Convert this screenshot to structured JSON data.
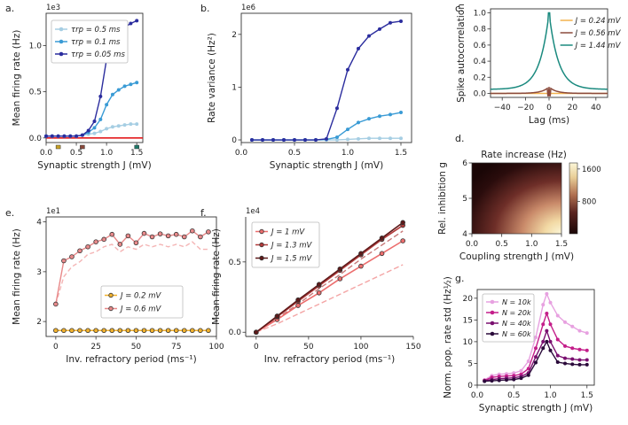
{
  "chart_data": [
    {
      "panel": "a.",
      "type": "line",
      "xlabel": "Synaptic strength J (mV)",
      "ylabel": "Mean firing rate (Hz)",
      "multiplier": "1e3",
      "xlim": [
        0,
        1.6
      ],
      "ylim": [
        -0.05,
        1.35
      ],
      "xticks": [
        0.0,
        0.5,
        1.0,
        1.5
      ],
      "xtick_labels": [
        "0.0",
        "0.5",
        "1.0",
        "1.5"
      ],
      "yticks": [
        0.0,
        0.5,
        1.0
      ],
      "ytick_labels": [
        "0.0",
        "0.5",
        "1.0"
      ],
      "legend": [
        "τrp = 0.5 ms",
        "τrp = 0.1 ms",
        "τrp = 0.05 ms"
      ],
      "x": [
        0.0,
        0.1,
        0.2,
        0.3,
        0.4,
        0.5,
        0.6,
        0.7,
        0.8,
        0.9,
        1.0,
        1.1,
        1.2,
        1.3,
        1.4,
        1.5
      ],
      "series": [
        {
          "name": "τrp = 0.5 ms",
          "color": "#a6cee3",
          "values": [
            0.02,
            0.02,
            0.02,
            0.02,
            0.02,
            0.02,
            0.03,
            0.04,
            0.05,
            0.07,
            0.1,
            0.12,
            0.13,
            0.14,
            0.15,
            0.15
          ]
        },
        {
          "name": "τrp = 0.1 ms",
          "color": "#3a9bd5",
          "values": [
            0.02,
            0.02,
            0.02,
            0.02,
            0.02,
            0.02,
            0.03,
            0.06,
            0.11,
            0.2,
            0.36,
            0.47,
            0.52,
            0.56,
            0.58,
            0.6
          ]
        },
        {
          "name": "τrp = 0.05 ms",
          "color": "#2b2d9e",
          "values": [
            0.02,
            0.02,
            0.02,
            0.02,
            0.02,
            0.02,
            0.03,
            0.08,
            0.18,
            0.45,
            0.85,
            1.08,
            1.16,
            1.2,
            1.24,
            1.27
          ]
        }
      ],
      "baseline": {
        "color": "#e31a1c",
        "value": 0.0
      },
      "markers": [
        {
          "x": 0.2,
          "color": "#c9a227"
        },
        {
          "x": 0.6,
          "color": "#8b4a3c"
        },
        {
          "x": 1.5,
          "color": "#1f7a6a"
        }
      ]
    },
    {
      "panel": "b.",
      "type": "line",
      "xlabel": "Synaptic strength J (mV)",
      "ylabel": "Rate variance (Hz²)",
      "multiplier": "1e6",
      "xlim": [
        0,
        1.6
      ],
      "ylim": [
        -0.05,
        2.4
      ],
      "xticks": [
        0.0,
        0.5,
        1.0,
        1.5
      ],
      "xtick_labels": [
        "0.0",
        "0.5",
        "1.0",
        "1.5"
      ],
      "yticks": [
        0,
        1,
        2
      ],
      "ytick_labels": [
        "0",
        "1",
        "2"
      ],
      "x": [
        0.1,
        0.2,
        0.3,
        0.4,
        0.5,
        0.6,
        0.7,
        0.8,
        0.9,
        1.0,
        1.1,
        1.2,
        1.3,
        1.4,
        1.5
      ],
      "series": [
        {
          "name": "τrp = 0.5 ms",
          "color": "#a6cee3",
          "values": [
            0,
            0,
            0,
            0,
            0,
            0,
            0,
            0,
            0,
            0.01,
            0.02,
            0.03,
            0.03,
            0.03,
            0.03
          ]
        },
        {
          "name": "τrp = 0.1 ms",
          "color": "#3a9bd5",
          "values": [
            0,
            0,
            0,
            0,
            0,
            0,
            0,
            0.01,
            0.05,
            0.2,
            0.33,
            0.4,
            0.45,
            0.48,
            0.52
          ]
        },
        {
          "name": "τrp = 0.05 ms",
          "color": "#2b2d9e",
          "values": [
            0,
            0,
            0,
            0,
            0,
            0,
            0,
            0.02,
            0.6,
            1.33,
            1.73,
            1.97,
            2.1,
            2.22,
            2.25
          ]
        }
      ]
    },
    {
      "panel": "c.",
      "type": "line",
      "xlabel": "Lag (ms)",
      "ylabel": "Spike autocorrelation",
      "xlim": [
        -50,
        50
      ],
      "ylim": [
        -0.05,
        1.05
      ],
      "xticks": [
        -40,
        -20,
        0,
        20,
        40
      ],
      "xtick_labels": [
        "−40",
        "−20",
        "0",
        "20",
        "40"
      ],
      "yticks": [
        0.0,
        0.2,
        0.4,
        0.6,
        0.8,
        1.0
      ],
      "ytick_labels": [
        "0.0",
        "0.2",
        "0.4",
        "0.6",
        "0.8",
        "1.0"
      ],
      "legend": [
        "J = 0.24 mV",
        "J = 0.56 mV",
        "J = 1.44 mV"
      ],
      "series": [
        {
          "name": "J = 0.24 mV",
          "color": "#f2b24e",
          "baseline": 0.0,
          "peak": 0.0
        },
        {
          "name": "J = 0.56 mV",
          "color": "#8b4a3c",
          "baseline": 0.0,
          "peak": 0.08
        },
        {
          "name": "J = 1.44 mV",
          "color": "#1a8a7f",
          "baseline": 0.05,
          "peak": 1.0
        }
      ]
    },
    {
      "panel": "d.",
      "type": "heatmap",
      "title": "Rate increase (Hz)",
      "xlabel": "Coupling strength J (mV)",
      "ylabel": "Rel. inhibition g",
      "xlim": [
        0,
        1.5
      ],
      "ylim": [
        4,
        6
      ],
      "xticks": [
        0.0,
        0.5,
        1.0,
        1.5
      ],
      "xtick_labels": [
        "0.0",
        "0.5",
        "1.0",
        "1.5"
      ],
      "yticks": [
        4,
        5,
        6
      ],
      "ytick_labels": [
        "4",
        "5",
        "6"
      ],
      "colorbar_ticks": [
        800,
        1600
      ],
      "colorbar_range": [
        0,
        1750
      ]
    },
    {
      "panel": "e.",
      "type": "line",
      "xlabel": "Inv. refractory period (ms⁻¹)",
      "ylabel": "Mean firing rate (Hz)",
      "multiplier": "1e1",
      "xlim": [
        -6,
        100
      ],
      "ylim": [
        1.7,
        4.1
      ],
      "xticks": [
        0,
        25,
        50,
        75,
        100
      ],
      "xtick_labels": [
        "0",
        "25",
        "50",
        "75",
        "100"
      ],
      "yticks": [
        2,
        3,
        4
      ],
      "ytick_labels": [
        "2",
        "3",
        "4"
      ],
      "legend": [
        "J = 0.2 mV",
        "J = 0.6 mV"
      ],
      "x": [
        0,
        5,
        10,
        15,
        20,
        25,
        30,
        35,
        40,
        45,
        50,
        55,
        60,
        65,
        70,
        75,
        80,
        85,
        90,
        95
      ],
      "series": [
        {
          "name": "J = 0.2 mV",
          "color": "#f2b22e",
          "values": [
            1.82,
            1.82,
            1.82,
            1.82,
            1.82,
            1.82,
            1.82,
            1.82,
            1.82,
            1.82,
            1.82,
            1.82,
            1.82,
            1.82,
            1.82,
            1.82,
            1.82,
            1.82,
            1.82,
            1.82
          ]
        },
        {
          "name": "J = 0.6 mV",
          "color": "#e8898a",
          "values": [
            2.35,
            3.22,
            3.3,
            3.42,
            3.5,
            3.6,
            3.65,
            3.75,
            3.55,
            3.72,
            3.58,
            3.77,
            3.7,
            3.76,
            3.72,
            3.75,
            3.7,
            3.82,
            3.7,
            3.8
          ]
        }
      ],
      "dashed": {
        "color": "#f4b4b4",
        "values": [
          2.35,
          2.9,
          3.1,
          3.2,
          3.35,
          3.4,
          3.5,
          3.55,
          3.4,
          3.5,
          3.45,
          3.55,
          3.5,
          3.55,
          3.5,
          3.55,
          3.5,
          3.6,
          3.45,
          3.45
        ]
      }
    },
    {
      "panel": "f.",
      "type": "line",
      "xlabel": "Inv. refractory period (ms⁻¹)",
      "ylabel": "Mean firing rate (Hz)",
      "multiplier": "1e4",
      "xlim": [
        -10,
        150
      ],
      "ylim": [
        -0.03,
        0.82
      ],
      "xticks": [
        0,
        50,
        100,
        150
      ],
      "xtick_labels": [
        "0",
        "50",
        "100",
        "150"
      ],
      "yticks": [
        0.0,
        0.5
      ],
      "ytick_labels": [
        "0.0",
        "0.5"
      ],
      "legend": [
        "J = 1 mV",
        "J = 1.3 mV",
        "J = 1.5 mV"
      ],
      "x": [
        0,
        20,
        40,
        60,
        80,
        100,
        120,
        140
      ],
      "series": [
        {
          "name": "J = 1 mV",
          "color": "#ec6e6e",
          "values": [
            0,
            0.09,
            0.19,
            0.28,
            0.38,
            0.47,
            0.56,
            0.65
          ]
        },
        {
          "name": "J = 1.3 mV",
          "color": "#b13a3a",
          "values": [
            0,
            0.11,
            0.22,
            0.33,
            0.44,
            0.55,
            0.66,
            0.76
          ]
        },
        {
          "name": "J = 1.5 mV",
          "color": "#5e1a1a",
          "values": [
            0,
            0.115,
            0.23,
            0.34,
            0.45,
            0.56,
            0.67,
            0.78
          ]
        }
      ],
      "dashed": [
        {
          "color": "#f4a6a6",
          "values": [
            0,
            0.06,
            0.13,
            0.2,
            0.27,
            0.34,
            0.41,
            0.48
          ]
        },
        {
          "color": "#c87a7a",
          "values": [
            0,
            0.1,
            0.2,
            0.31,
            0.41,
            0.52,
            0.62,
            0.72
          ]
        }
      ]
    },
    {
      "panel": "g.",
      "type": "line",
      "xlabel": "Synaptic strength J (mV)",
      "ylabel": "Norm. pop. rate std (Hz½)",
      "xlim": [
        0,
        1.6
      ],
      "ylim": [
        0,
        22
      ],
      "xticks": [
        0.0,
        0.5,
        1.0,
        1.5
      ],
      "xtick_labels": [
        "0.0",
        "0.5",
        "1.0",
        "1.5"
      ],
      "yticks": [
        0,
        5,
        10,
        15,
        20
      ],
      "ytick_labels": [
        "0",
        "5",
        "10",
        "15",
        "20"
      ],
      "legend": [
        "N = 10k",
        "N = 20k",
        "N = 40k",
        "N = 60k"
      ],
      "x": [
        0.1,
        0.2,
        0.3,
        0.4,
        0.5,
        0.6,
        0.7,
        0.8,
        0.9,
        0.95,
        1.0,
        1.1,
        1.2,
        1.3,
        1.4,
        1.5
      ],
      "series": [
        {
          "name": "N = 10k",
          "color": "#e7a1e0",
          "values": [
            1.2,
            2.2,
            2.5,
            2.6,
            2.8,
            3.3,
            5.5,
            11,
            18.5,
            21,
            19,
            16,
            14.5,
            13.5,
            12.5,
            12
          ]
        },
        {
          "name": "N = 20k",
          "color": "#c41e8a",
          "values": [
            1.1,
            1.8,
            2.0,
            2.1,
            2.2,
            2.5,
            3.8,
            8.5,
            14,
            16.5,
            14,
            10.5,
            9,
            8.5,
            8.2,
            8
          ]
        },
        {
          "name": "N = 40k",
          "color": "#7a1070",
          "values": [
            1.0,
            1.3,
            1.5,
            1.6,
            1.7,
            2.0,
            2.8,
            6.5,
            10,
            12.5,
            10,
            6.8,
            6.2,
            6,
            5.8,
            5.8
          ]
        },
        {
          "name": "N = 60k",
          "color": "#2a0a3a",
          "values": [
            0.9,
            1.0,
            1.1,
            1.2,
            1.3,
            1.6,
            2.3,
            5.2,
            8.5,
            10,
            8,
            5.3,
            5,
            4.8,
            4.7,
            4.7
          ]
        }
      ]
    }
  ]
}
